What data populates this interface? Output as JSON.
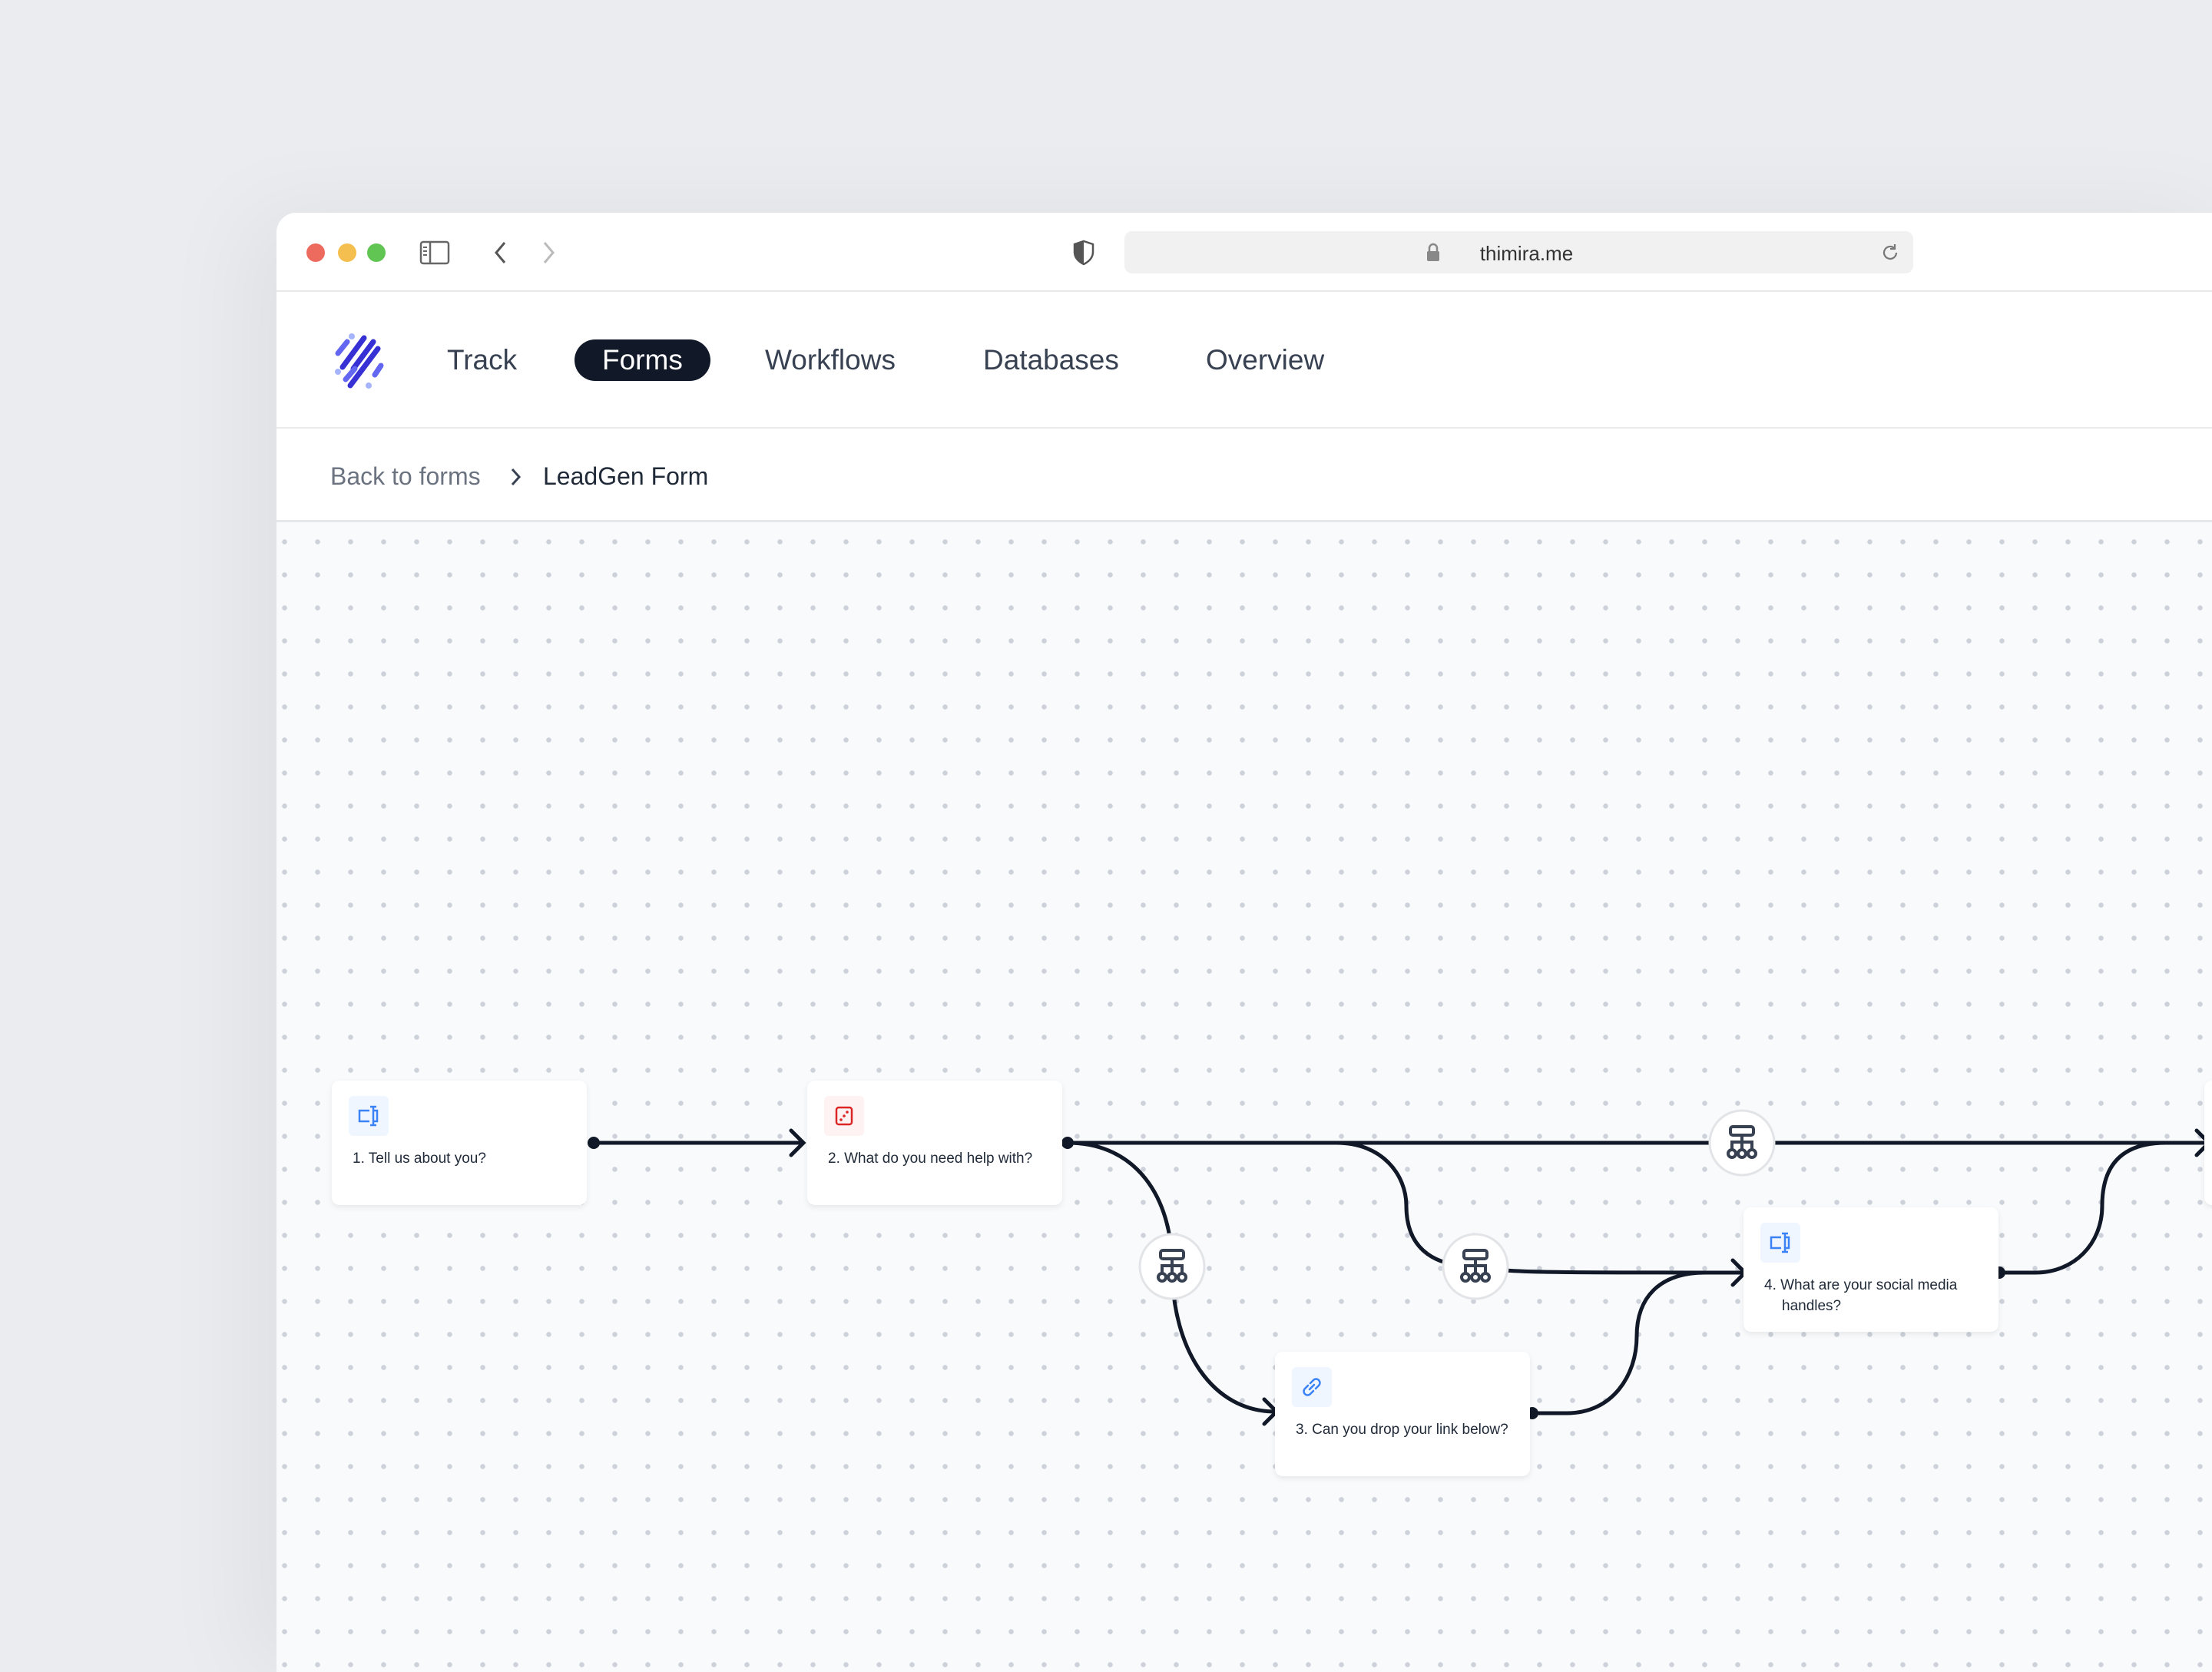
{
  "browser": {
    "url": "thimira.me",
    "icons": [
      "sidebar-icon",
      "chevron-left-icon",
      "chevron-right-icon",
      "shield-icon",
      "lock-icon",
      "reload-icon"
    ]
  },
  "nav": {
    "items": [
      {
        "label": "Track"
      },
      {
        "label": "Forms",
        "active": true
      },
      {
        "label": "Workflows"
      },
      {
        "label": "Databases"
      },
      {
        "label": "Overview"
      }
    ]
  },
  "breadcrumb": {
    "back": "Back to forms",
    "current": "LeadGen Form"
  },
  "flow": {
    "nodes": [
      {
        "label": "1. Tell us about you?",
        "icon": "text-input-icon",
        "color": "#3b82f6"
      },
      {
        "label": "2. What do you need help with?",
        "icon": "dice-icon",
        "color": "#dc2626"
      },
      {
        "label": "3. Can you drop your link below?",
        "icon": "link-icon",
        "color": "#3b82f6"
      },
      {
        "label": "4. What are your social media handles?",
        "icon": "text-input-icon",
        "color": "#3b82f6"
      }
    ],
    "branch_icon": "sitemap-icon"
  },
  "colors": {
    "accent": "#111827",
    "logo": "#3730d4",
    "logo_light": "#a5b4fc"
  }
}
